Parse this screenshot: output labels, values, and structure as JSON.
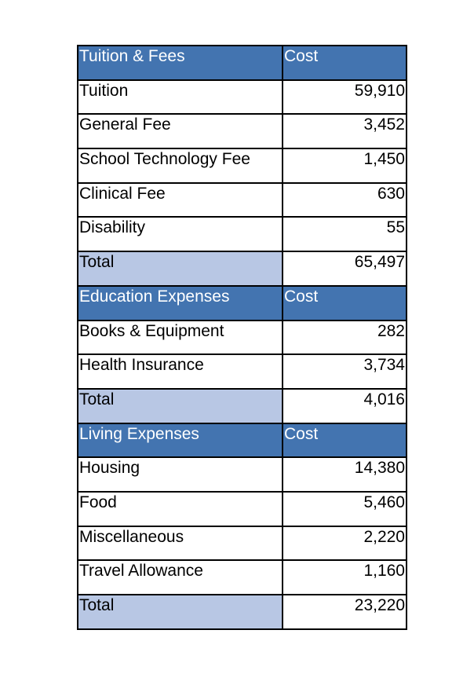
{
  "sections": [
    {
      "title": "Tuition & Fees",
      "cost_header": "Cost",
      "rows": [
        {
          "label": "Tuition",
          "value": "59,910"
        },
        {
          "label": "General Fee",
          "value": "3,452"
        },
        {
          "label": "School Technology Fee",
          "value": "1,450"
        },
        {
          "label": "Clinical Fee",
          "value": "630"
        },
        {
          "label": "Disability",
          "value": "55"
        }
      ],
      "total_label": "Total",
      "total_value": "65,497"
    },
    {
      "title": "Education Expenses",
      "cost_header": "Cost",
      "rows": [
        {
          "label": "Books & Equipment",
          "value": "282"
        },
        {
          "label": "Health Insurance",
          "value": "3,734"
        }
      ],
      "total_label": "Total",
      "total_value": "4,016"
    },
    {
      "title": "Living Expenses",
      "cost_header": "Cost",
      "rows": [
        {
          "label": "Housing",
          "value": "14,380"
        },
        {
          "label": "Food",
          "value": "5,460"
        },
        {
          "label": "Miscellaneous",
          "value": "2,220"
        },
        {
          "label": "Travel Allowance",
          "value": "1,160"
        }
      ],
      "total_label": "Total",
      "total_value": "23,220"
    }
  ],
  "colors": {
    "header": "#4374b0",
    "total": "#b8c7e4"
  }
}
